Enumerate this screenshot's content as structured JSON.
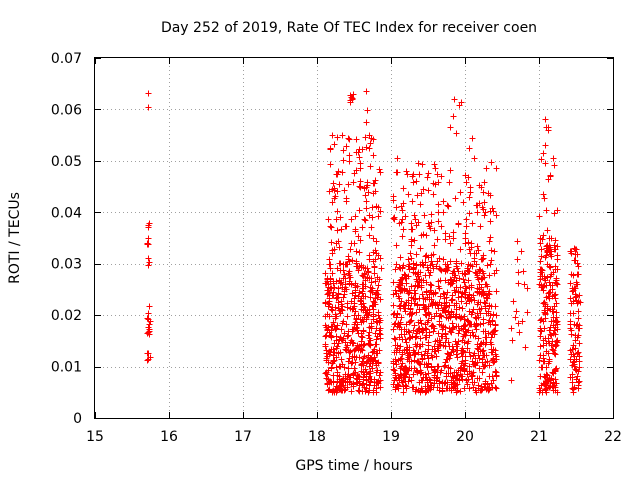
{
  "chart_data": {
    "type": "scatter",
    "title": "Day 252 of 2019, Rate Of TEC Index for receiver coen",
    "xlabel": "GPS time / hours",
    "ylabel": "ROTI / TECUs",
    "xlim": [
      15,
      22
    ],
    "ylim": [
      0,
      0.07
    ],
    "x_ticks": [
      15,
      16,
      17,
      18,
      19,
      20,
      21,
      22
    ],
    "x_tick_labels": [
      "15",
      "16",
      "17",
      "18",
      "19",
      "20",
      "21",
      "22"
    ],
    "y_ticks": [
      0,
      0.01,
      0.02,
      0.03,
      0.04,
      0.05,
      0.06,
      0.07
    ],
    "y_tick_labels": [
      "0",
      "0.01",
      "0.02",
      "0.03",
      "0.04",
      "0.05",
      "0.06",
      "0.07"
    ],
    "grid": true,
    "marker": "+",
    "series": [
      {
        "name": "ROTI",
        "color": "#ff0000",
        "clusters": [
          {
            "x_range": [
              15.7,
              15.74
            ],
            "y_range": [
              0.011,
              0.022
            ],
            "count": 18
          },
          {
            "x_range": [
              15.7,
              15.74
            ],
            "y_range": [
              0.029,
              0.038
            ],
            "count": 6
          },
          {
            "x_range": [
              18.1,
              18.86
            ],
            "y_range": [
              0.005,
              0.03
            ],
            "count": 520
          },
          {
            "x_range": [
              18.12,
              18.86
            ],
            "y_range": [
              0.03,
              0.055
            ],
            "count": 130
          },
          {
            "x_range": [
              19.02,
              20.42
            ],
            "y_range": [
              0.005,
              0.03
            ],
            "count": 900
          },
          {
            "x_range": [
              19.02,
              20.42
            ],
            "y_range": [
              0.03,
              0.05
            ],
            "count": 170
          },
          {
            "x_range": [
              20.62,
              20.84
            ],
            "y_range": [
              0.006,
              0.034
            ],
            "count": 16
          },
          {
            "x_range": [
              21.0,
              21.25
            ],
            "y_range": [
              0.005,
              0.035
            ],
            "count": 210
          },
          {
            "x_range": [
              21.0,
              21.25
            ],
            "y_range": [
              0.035,
              0.058
            ],
            "count": 14
          },
          {
            "x_range": [
              21.42,
              21.55
            ],
            "y_range": [
              0.005,
              0.033
            ],
            "count": 95
          }
        ],
        "points": [
          [
            15.72,
            0.0632
          ],
          [
            15.72,
            0.0605
          ],
          [
            15.72,
            0.0375
          ],
          [
            15.72,
            0.0338
          ],
          [
            15.72,
            0.0312
          ],
          [
            15.72,
            0.0298
          ],
          [
            18.45,
            0.0628
          ],
          [
            18.47,
            0.0622
          ],
          [
            18.44,
            0.0618
          ],
          [
            18.46,
            0.0624
          ],
          [
            18.48,
            0.063
          ],
          [
            18.45,
            0.0615
          ],
          [
            18.47,
            0.062
          ],
          [
            18.66,
            0.0635
          ],
          [
            18.68,
            0.0598
          ],
          [
            18.66,
            0.0575
          ],
          [
            18.7,
            0.055
          ],
          [
            18.18,
            0.0525
          ],
          [
            18.42,
            0.0545
          ],
          [
            18.72,
            0.0535
          ],
          [
            19.08,
            0.0505
          ],
          [
            19.85,
            0.062
          ],
          [
            19.92,
            0.0608
          ],
          [
            19.95,
            0.0615
          ],
          [
            19.8,
            0.0565
          ],
          [
            19.84,
            0.0588
          ],
          [
            19.88,
            0.0555
          ],
          [
            20.05,
            0.0525
          ],
          [
            20.1,
            0.0545
          ],
          [
            20.12,
            0.0505
          ],
          [
            19.62,
            0.0475
          ],
          [
            19.6,
            0.0455
          ],
          [
            21.08,
            0.0582
          ],
          [
            21.1,
            0.0565
          ],
          [
            21.12,
            0.056
          ],
          [
            21.08,
            0.053
          ],
          [
            21.06,
            0.0515
          ],
          [
            21.12,
            0.0465
          ],
          [
            21.05,
            0.0435
          ],
          [
            21.1,
            0.0405
          ],
          [
            20.7,
            0.0345
          ],
          [
            20.78,
            0.0285
          ],
          [
            20.8,
            0.026
          ],
          [
            20.72,
            0.0185
          ]
        ]
      }
    ]
  }
}
